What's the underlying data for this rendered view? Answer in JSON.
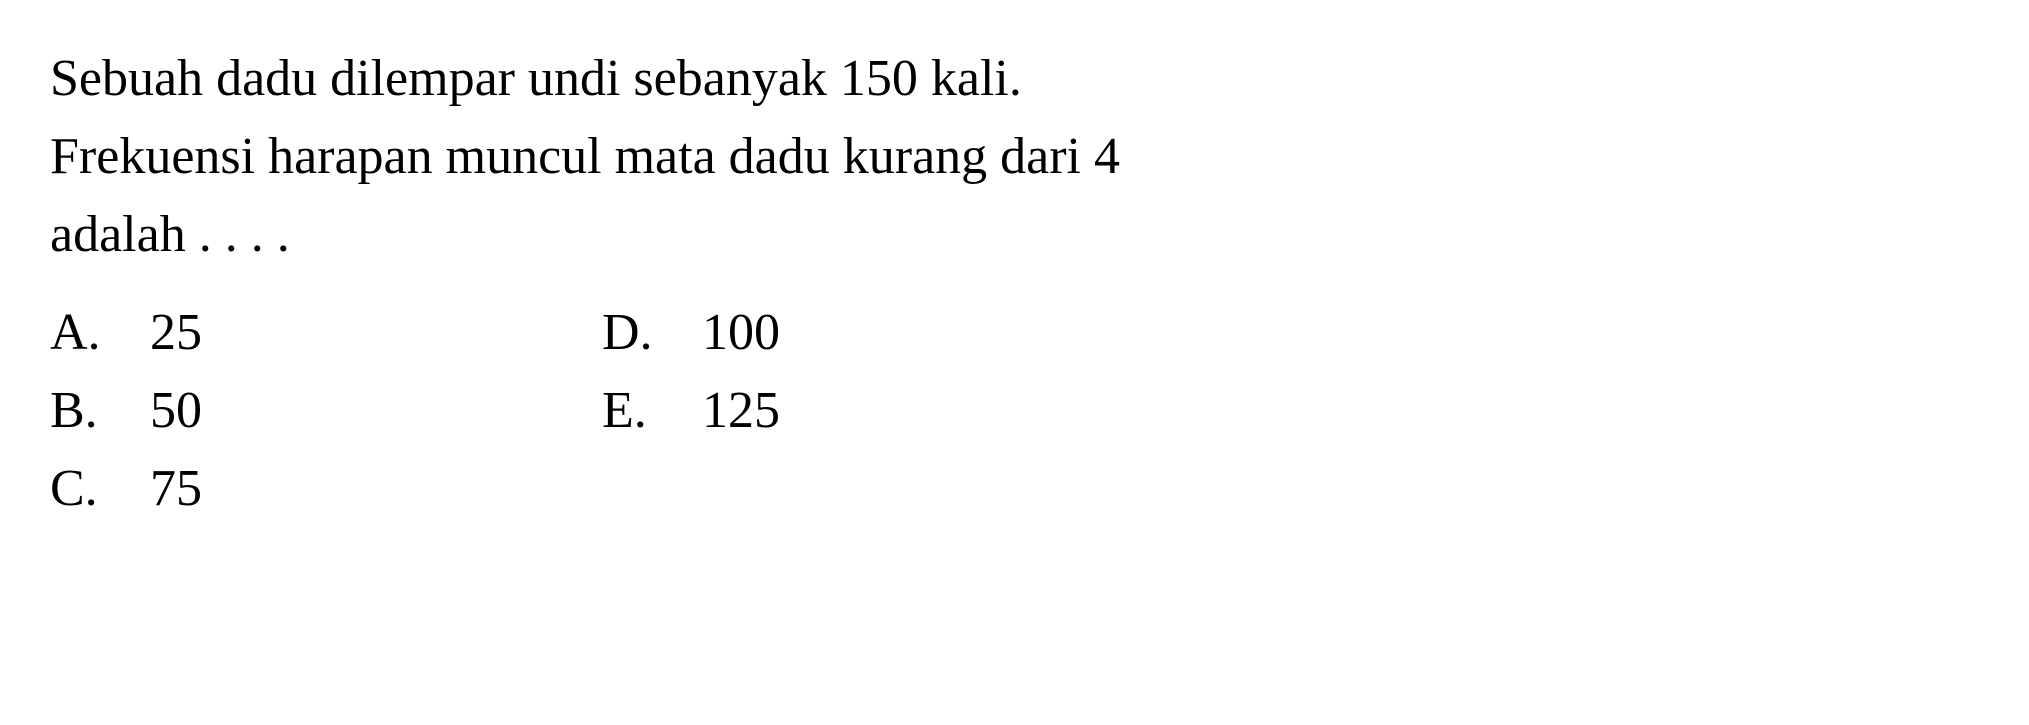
{
  "question": {
    "line1": "Sebuah dadu dilempar undi sebanyak 150 kali.",
    "line2": "Frekuensi harapan muncul mata dadu kurang dari 4",
    "line3": "adalah . . . ."
  },
  "options": {
    "left": [
      {
        "letter": "A.",
        "value": "25"
      },
      {
        "letter": "B.",
        "value": "50"
      },
      {
        "letter": "C.",
        "value": "75"
      }
    ],
    "right": [
      {
        "letter": "D.",
        "value": "100"
      },
      {
        "letter": "E.",
        "value": "125"
      }
    ]
  },
  "styling": {
    "font_family": "Times New Roman",
    "font_size_pt": 52,
    "text_color": "#000000",
    "background_color": "#ffffff",
    "line_height": 1.5
  }
}
